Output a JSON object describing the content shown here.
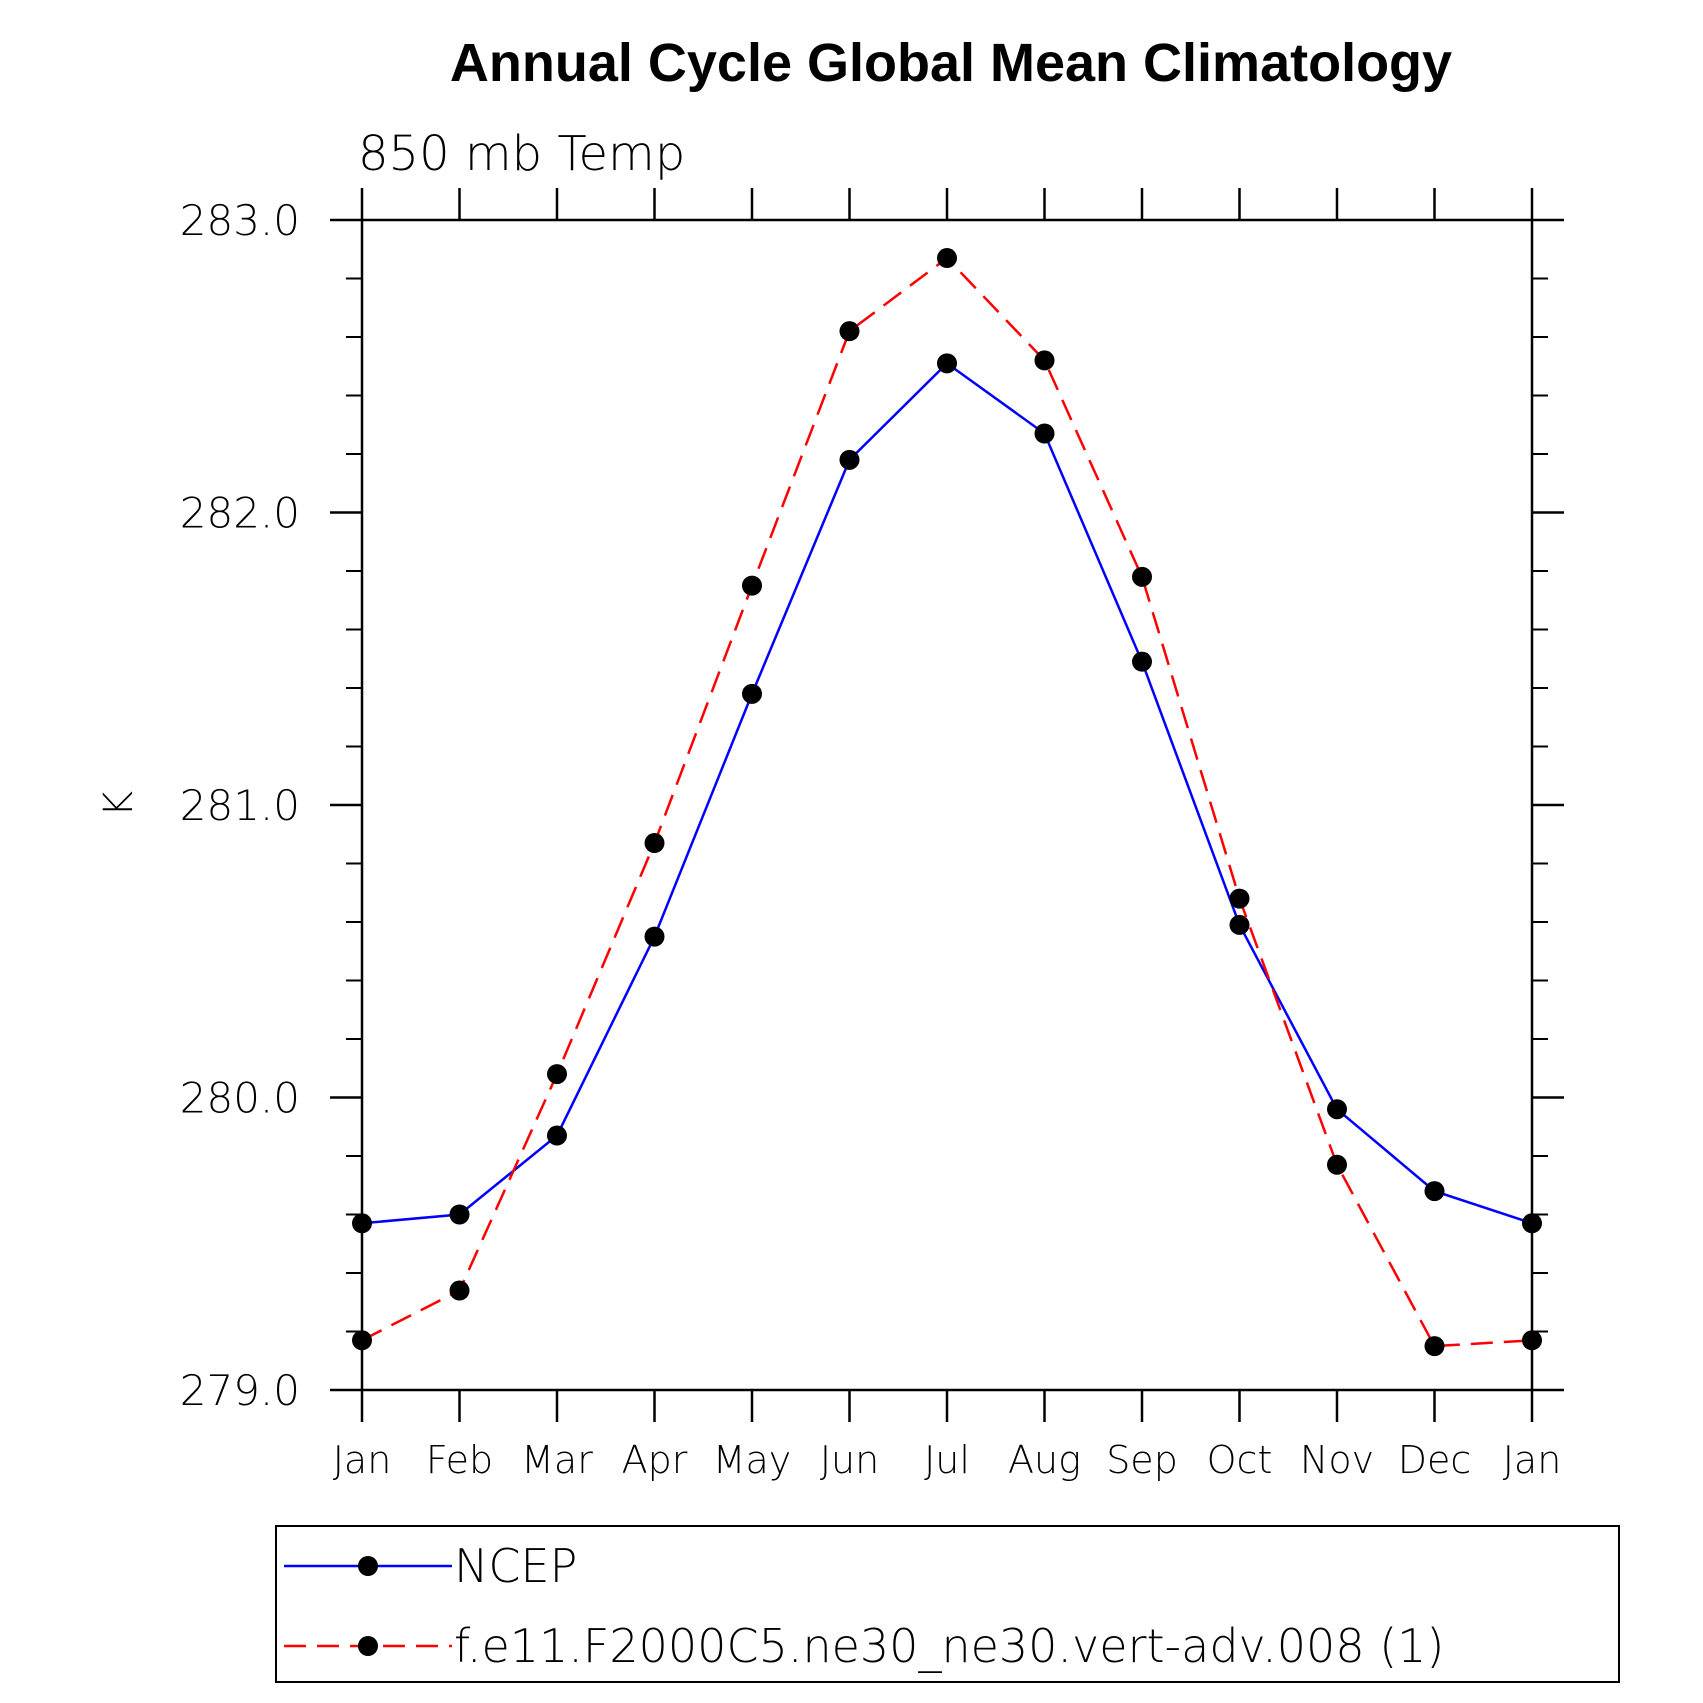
{
  "chart_data": {
    "type": "line",
    "title": "Annual Cycle Global Mean Climatology",
    "subtitle": "850 mb Temp",
    "xlabel": "",
    "ylabel": "K",
    "categories": [
      "Jan",
      "Feb",
      "Mar",
      "Apr",
      "May",
      "Jun",
      "Jul",
      "Aug",
      "Sep",
      "Oct",
      "Nov",
      "Dec",
      "Jan"
    ],
    "ylim": [
      279.0,
      283.0
    ],
    "yticks": [
      279.0,
      280.0,
      281.0,
      282.0,
      283.0
    ],
    "ytick_labels": [
      "279.0",
      "280.0",
      "281.0",
      "282.0",
      "283.0"
    ],
    "grid": false,
    "legend_position": "bottom",
    "series": [
      {
        "name": "NCEP",
        "color": "#0000ff",
        "dash": "solid",
        "marker": "filled-circle",
        "values": [
          279.57,
          279.6,
          279.87,
          280.55,
          281.38,
          282.18,
          282.51,
          282.27,
          281.49,
          280.59,
          279.96,
          279.68,
          279.57
        ]
      },
      {
        "name": "f.e11.F2000C5.ne30_ne30.vert-adv.008 (1)",
        "color": "#ff0000",
        "dash": "dashed",
        "marker": "filled-circle",
        "values": [
          279.17,
          279.34,
          280.08,
          280.87,
          281.75,
          282.62,
          282.87,
          282.52,
          281.78,
          280.68,
          279.77,
          279.15,
          279.17
        ]
      }
    ]
  }
}
